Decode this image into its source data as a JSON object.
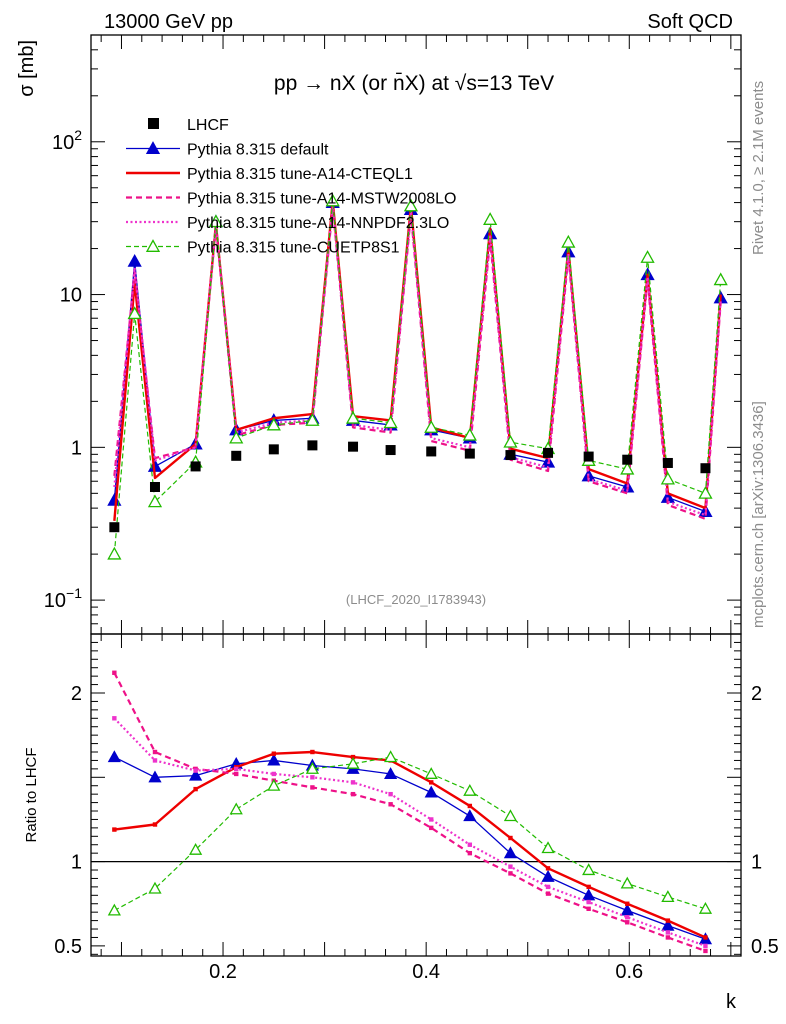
{
  "header": {
    "left": "13000 GeV pp",
    "right": "Soft QCD"
  },
  "side_labels": {
    "rivet": "Rivet 4.1.0, ≥ 2.1M events",
    "mcplots": "mcplots.cern.ch [arXiv:1306.3436]"
  },
  "colors": {
    "lhcf": "#000000",
    "default": "#0000cc",
    "cteql1": "#ee0000",
    "mstw": "#ee1188",
    "nnpdf": "#ee33cc",
    "cuetp": "#22bb00"
  },
  "chart_data": [
    {
      "type": "line",
      "title": "pp → nX (or n̄X) at √s=13 TeV",
      "ylabel": "σ [mb]",
      "yscale": "log",
      "ylim": [
        0.06,
        500
      ],
      "xlim": [
        0.07,
        0.71
      ],
      "watermark": "(LHCF_2020_I1783943)",
      "ytick_labels": [
        {
          "value": 0.1,
          "base": "10",
          "exp": "−1"
        },
        {
          "value": 1,
          "base": "1",
          "exp": ""
        },
        {
          "value": 10,
          "base": "10",
          "exp": ""
        },
        {
          "value": 100,
          "base": "10",
          "exp": "2"
        }
      ],
      "x": [
        0.093,
        0.113,
        0.133,
        0.173,
        0.193,
        0.213,
        0.25,
        0.288,
        0.308,
        0.328,
        0.365,
        0.385,
        0.405,
        0.443,
        0.463,
        0.483,
        0.52,
        0.54,
        0.56,
        0.598,
        0.618,
        0.638,
        0.675,
        0.69
      ],
      "lhcf": {
        "name": "LHCF",
        "x": [
          0.093,
          0.133,
          0.173,
          0.213,
          0.25,
          0.288,
          0.328,
          0.365,
          0.405,
          0.443,
          0.483,
          0.52,
          0.56,
          0.598,
          0.638,
          0.675
        ],
        "values": [
          0.3,
          0.55,
          0.75,
          0.88,
          0.97,
          1.03,
          1.01,
          0.96,
          0.94,
          0.91,
          0.89,
          0.92,
          0.87,
          0.83,
          0.79,
          0.73
        ]
      },
      "series": [
        {
          "key": "default",
          "name": "Pythia 8.315 default",
          "style": "solid",
          "marker": "triangle-filled",
          "values": [
            0.45,
            16.5,
            0.75,
            1.05,
            30,
            1.3,
            1.5,
            1.55,
            40,
            1.5,
            1.4,
            36,
            1.3,
            1.15,
            25,
            0.9,
            0.8,
            19,
            0.65,
            0.55,
            13.5,
            0.47,
            0.38,
            9.5
          ]
        },
        {
          "key": "cteql1",
          "name": "Pythia 8.315 tune-A14-CTEQL1",
          "style": "solid-thick",
          "marker": "none",
          "values": [
            0.33,
            12,
            0.63,
            1.05,
            29,
            1.3,
            1.55,
            1.65,
            41,
            1.6,
            1.5,
            38,
            1.35,
            1.15,
            27,
            0.98,
            0.85,
            20,
            0.72,
            0.58,
            13.5,
            0.5,
            0.4,
            10
          ]
        },
        {
          "key": "mstw",
          "name": "Pythia 8.315 tune-A14-MSTW2008LO",
          "style": "dashed",
          "marker": "none",
          "values": [
            0.65,
            14,
            0.85,
            1.0,
            28,
            1.2,
            1.4,
            1.45,
            38,
            1.35,
            1.25,
            34,
            1.1,
            0.95,
            23,
            0.83,
            0.7,
            18,
            0.6,
            0.5,
            12.5,
            0.42,
            0.34,
            9
          ]
        },
        {
          "key": "nnpdf",
          "name": "Pythia 8.315 tune-A14-NNPDF2.3LO",
          "style": "dotted",
          "marker": "none",
          "values": [
            0.55,
            15,
            0.82,
            1.0,
            29,
            1.25,
            1.45,
            1.5,
            39,
            1.4,
            1.3,
            35,
            1.15,
            1.0,
            24,
            0.86,
            0.74,
            18.5,
            0.62,
            0.52,
            13,
            0.44,
            0.36,
            9.2
          ]
        },
        {
          "key": "cuetp",
          "name": "Pythia 8.315 tune-CUETP8S1",
          "style": "dashed-fine",
          "marker": "triangle-open",
          "values": [
            0.2,
            7.5,
            0.44,
            0.8,
            30,
            1.15,
            1.4,
            1.5,
            41,
            1.55,
            1.45,
            38,
            1.35,
            1.2,
            31,
            1.08,
            0.98,
            22,
            0.82,
            0.72,
            17.5,
            0.62,
            0.5,
            12.5
          ]
        }
      ]
    },
    {
      "type": "line",
      "xlabel": "k",
      "ylabel": "Ratio to LHCF",
      "ylim": [
        0.44,
        2.35
      ],
      "xlim": [
        0.07,
        0.71
      ],
      "ytick_labels": [
        "0.5",
        "1",
        "2"
      ],
      "xtick_labels": [
        "0.2",
        "0.4",
        "0.6"
      ],
      "reference": 1,
      "x": [
        0.093,
        0.133,
        0.173,
        0.213,
        0.25,
        0.288,
        0.328,
        0.365,
        0.405,
        0.443,
        0.483,
        0.52,
        0.56,
        0.598,
        0.638,
        0.675
      ],
      "series": [
        {
          "key": "default",
          "name": "Pythia 8.315 default",
          "marker": "triangle-filled",
          "values": [
            1.62,
            1.5,
            1.51,
            1.58,
            1.6,
            1.57,
            1.55,
            1.52,
            1.41,
            1.27,
            1.05,
            0.91,
            0.8,
            0.71,
            0.62,
            0.54
          ]
        },
        {
          "key": "cteql1",
          "name": "Pythia 8.315 tune-A14-CTEQL1",
          "marker": "none",
          "values": [
            1.19,
            1.22,
            1.43,
            1.56,
            1.64,
            1.65,
            1.62,
            1.6,
            1.47,
            1.33,
            1.14,
            0.96,
            0.85,
            0.75,
            0.65,
            0.55
          ]
        },
        {
          "key": "mstw",
          "name": "Pythia 8.315 tune-A14-MSTW2008LO",
          "marker": "small-dot",
          "values": [
            2.12,
            1.65,
            1.55,
            1.52,
            1.48,
            1.44,
            1.4,
            1.34,
            1.2,
            1.05,
            0.93,
            0.81,
            0.72,
            0.64,
            0.55,
            0.47
          ]
        },
        {
          "key": "nnpdf",
          "name": "Pythia 8.315 tune-A14-NNPDF2.3LO",
          "marker": "small-dot",
          "values": [
            1.85,
            1.6,
            1.54,
            1.55,
            1.52,
            1.5,
            1.47,
            1.4,
            1.25,
            1.1,
            0.97,
            0.85,
            0.76,
            0.67,
            0.58,
            0.5
          ]
        },
        {
          "key": "cuetp",
          "name": "Pythia 8.315 tune-CUETP8S1",
          "marker": "triangle-open",
          "values": [
            0.71,
            0.84,
            1.07,
            1.31,
            1.45,
            1.55,
            1.58,
            1.62,
            1.52,
            1.42,
            1.27,
            1.08,
            0.95,
            0.87,
            0.79,
            0.72
          ]
        }
      ]
    }
  ]
}
